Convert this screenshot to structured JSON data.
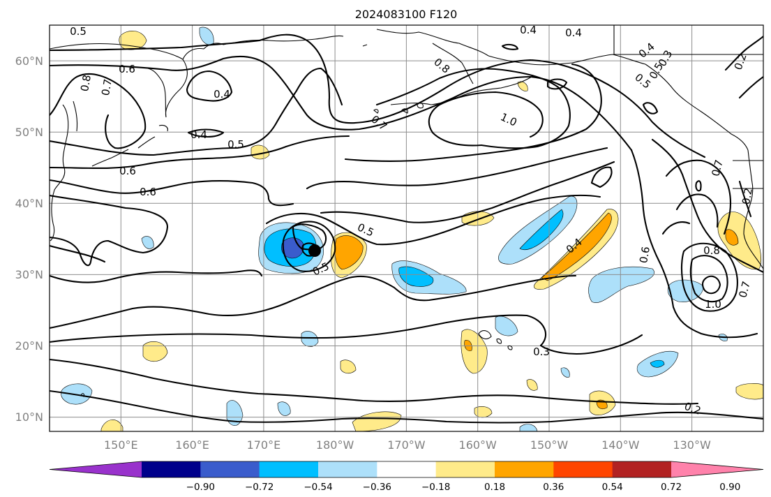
{
  "title": "2024083100 F120",
  "map": {
    "lon_range": [
      140,
      245
    ],
    "lat_range": [
      8,
      65
    ],
    "lon_ticks": [
      {
        "lon": 150,
        "label": "150°E"
      },
      {
        "lon": 160,
        "label": "160°E"
      },
      {
        "lon": 170,
        "label": "170°E"
      },
      {
        "lon": 180,
        "label": "180°W"
      },
      {
        "lon": 190,
        "label": "170°W"
      },
      {
        "lon": 200,
        "label": "160°W"
      },
      {
        "lon": 210,
        "label": "150°W"
      },
      {
        "lon": 220,
        "label": "140°W"
      },
      {
        "lon": 230,
        "label": "130°W"
      }
    ],
    "lat_ticks": [
      {
        "lat": 10,
        "label": "10°N"
      },
      {
        "lat": 20,
        "label": "20°N"
      },
      {
        "lat": 30,
        "label": "30°N"
      },
      {
        "lat": 40,
        "label": "40°N"
      },
      {
        "lat": 50,
        "label": "50°N"
      },
      {
        "lat": 60,
        "label": "60°N"
      }
    ],
    "grid": true,
    "storm_marker": {
      "lon": 177.5,
      "lat": 33.2
    }
  },
  "colorbar": {
    "levels": [
      "-0.90",
      "-0.72",
      "-0.54",
      "-0.36",
      "-0.18",
      "0.18",
      "0.36",
      "0.54",
      "0.72",
      "0.90"
    ],
    "colors": [
      "#9932cc",
      "#00008b",
      "#3a5ccc",
      "#00bfff",
      "#ade0fa",
      "#ffffff",
      "#ffeb8a",
      "#ffa500",
      "#ff4500",
      "#b22222",
      "#ff82ab"
    ],
    "extend": "both"
  },
  "contour_labels": [
    "0.5",
    "0.6",
    "0.7",
    "0.8",
    "0.4",
    "0.4",
    "0.5",
    "0.6",
    "0.6",
    "0.4",
    "0.4",
    "0.8",
    "0.7",
    "1.0",
    "0.5",
    "0.5",
    "0.5",
    "0.4",
    "0.4",
    "0.3",
    "0.5",
    "0.2",
    "0.7",
    "0.2",
    "0.6",
    "0.8",
    "1.0",
    "0.7",
    "0.3",
    "0.2"
  ]
}
